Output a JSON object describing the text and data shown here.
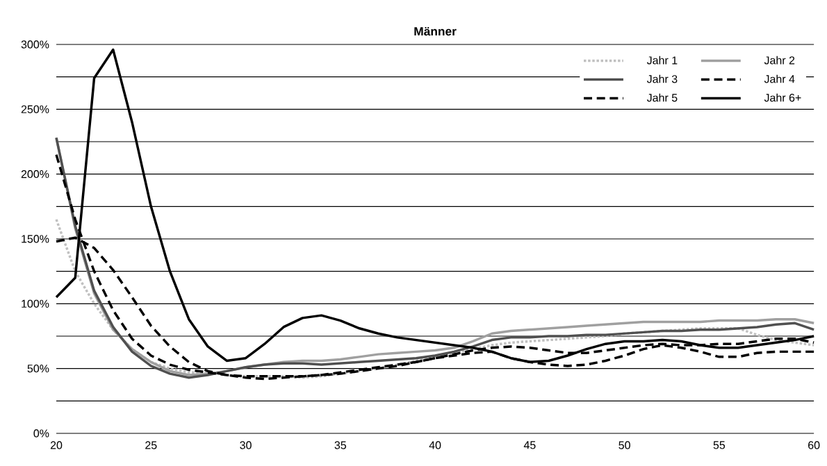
{
  "chart_data": {
    "type": "line",
    "title": "Männer",
    "x": [
      20,
      21,
      22,
      23,
      24,
      25,
      26,
      27,
      28,
      29,
      30,
      31,
      32,
      33,
      34,
      35,
      36,
      37,
      38,
      39,
      40,
      41,
      42,
      43,
      44,
      45,
      46,
      47,
      48,
      49,
      50,
      51,
      52,
      53,
      54,
      55,
      56,
      57,
      58,
      59,
      60
    ],
    "series": [
      {
        "name": "Jahr 1",
        "color": "#c0c0c0",
        "line_style": "dotted",
        "values": [
          165,
          125,
          100,
          80,
          65,
          55,
          50,
          47,
          47,
          45,
          44,
          44,
          44,
          43,
          44,
          46,
          48,
          50,
          53,
          56,
          59,
          62,
          65,
          68,
          70,
          71,
          72,
          73,
          74,
          75,
          77,
          78,
          79,
          80,
          81,
          81,
          81,
          76,
          72,
          70,
          68
        ]
      },
      {
        "name": "Jahr 2",
        "color": "#a0a0a0",
        "line_style": "solid",
        "values": [
          228,
          158,
          108,
          80,
          65,
          55,
          48,
          45,
          46,
          48,
          51,
          53,
          55,
          56,
          56,
          57,
          59,
          61,
          62,
          63,
          64,
          66,
          71,
          77,
          79,
          80,
          81,
          82,
          83,
          84,
          85,
          86,
          86,
          86,
          86,
          87,
          87,
          87,
          88,
          88,
          85
        ]
      },
      {
        "name": "Jahr 3",
        "color": "#505050",
        "line_style": "solid",
        "values": [
          228,
          160,
          110,
          82,
          63,
          52,
          46,
          43,
          45,
          48,
          51,
          53,
          54,
          54,
          53,
          54,
          55,
          56,
          57,
          58,
          60,
          63,
          67,
          72,
          74,
          74,
          75,
          75,
          76,
          76,
          77,
          78,
          79,
          79,
          80,
          80,
          81,
          82,
          84,
          85,
          80
        ]
      },
      {
        "name": "Jahr 4",
        "color": "#000000",
        "line_style": "dashed",
        "values": [
          215,
          165,
          125,
          95,
          73,
          60,
          53,
          49,
          47,
          45,
          44,
          44,
          44,
          44,
          45,
          46,
          48,
          50,
          52,
          55,
          58,
          61,
          64,
          66,
          67,
          66,
          64,
          62,
          62,
          64,
          66,
          68,
          69,
          68,
          68,
          69,
          69,
          71,
          73,
          73,
          70
        ]
      },
      {
        "name": "Jahr 5",
        "color": "#000000",
        "line_style": "dashed",
        "values": [
          148,
          151,
          143,
          126,
          105,
          83,
          67,
          55,
          48,
          45,
          43,
          42,
          43,
          44,
          45,
          47,
          49,
          51,
          53,
          55,
          58,
          60,
          62,
          63,
          58,
          55,
          53,
          52,
          53,
          56,
          60,
          65,
          68,
          66,
          63,
          59,
          59,
          62,
          63,
          63,
          63
        ]
      },
      {
        "name": "Jahr 6+",
        "color": "#000000",
        "line_style": "solid",
        "values": [
          105,
          120,
          274,
          296,
          240,
          175,
          125,
          88,
          67,
          56,
          58,
          69,
          82,
          89,
          91,
          87,
          81,
          77,
          74,
          72,
          70,
          68,
          66,
          63,
          58,
          55,
          56,
          60,
          65,
          69,
          71,
          71,
          72,
          71,
          68,
          66,
          66,
          68,
          70,
          72,
          75
        ]
      }
    ],
    "xlim": [
      20,
      60
    ],
    "ylim": [
      0,
      300
    ],
    "xticks": [
      20,
      25,
      30,
      35,
      40,
      45,
      50,
      55,
      60
    ],
    "yticks": [
      {
        "value": 0,
        "label": "0%"
      },
      {
        "value": 25,
        "label": null
      },
      {
        "value": 50,
        "label": "50%"
      },
      {
        "value": 75,
        "label": null
      },
      {
        "value": 100,
        "label": "100%"
      },
      {
        "value": 125,
        "label": null
      },
      {
        "value": 150,
        "label": "150%"
      },
      {
        "value": 175,
        "label": null
      },
      {
        "value": 200,
        "label": "200%"
      },
      {
        "value": 225,
        "label": null
      },
      {
        "value": 250,
        "label": "250%"
      },
      {
        "value": 275,
        "label": null
      },
      {
        "value": 300,
        "label": "300%"
      }
    ],
    "grid": "y",
    "legend": "top right",
    "marker": "none"
  }
}
